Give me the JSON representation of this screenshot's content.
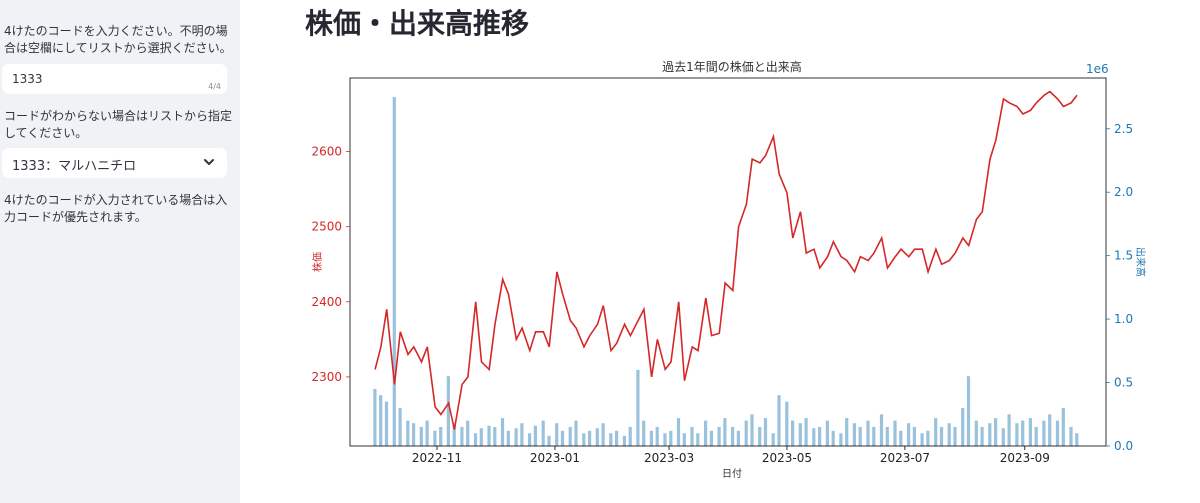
{
  "sidebar": {
    "code_help": "4けたのコードを入力ください。不明の場合は空欄にしてリストから選択ください。",
    "code_input_value": "1333",
    "code_input_counter": "4/4",
    "list_help": "コードがわからない場合はリストから指定してください。",
    "company_select_value": "1333：マルハニチロ",
    "priority_note": "4けたのコードが入力されている場合は入力コードが優先されます。"
  },
  "main": {
    "title": "株価・出来高推移"
  },
  "colors": {
    "price_line": "#d62728",
    "volume_bar": "#1f77b4",
    "sidebar_bg": "#f0f2f6"
  },
  "chart_data": {
    "type": "line",
    "title": "過去1年間の株価と出来高",
    "xlabel": "日付",
    "ylabel": "株価",
    "y2label": "出来高",
    "y2_offset_text": "1e6",
    "x_ticks": [
      "2022-11",
      "2023-01",
      "2023-03",
      "2023-05",
      "2023-07",
      "2023-09"
    ],
    "y_ticks": [
      2300,
      2400,
      2500,
      2600
    ],
    "y2_ticks": [
      "0.0",
      "0.5",
      "1.0",
      "1.5",
      "2.0",
      "2.5"
    ],
    "xlim": [
      "2022-09-17",
      "2023-10-13"
    ],
    "ylim": [
      2208,
      2698
    ],
    "y2lim": [
      0,
      2.9
    ],
    "legend": "none",
    "grid": false,
    "series": [
      {
        "type": "line",
        "dates": [
          "2022-09-30",
          "2022-10-03",
          "2022-10-06",
          "2022-10-10",
          "2022-10-13",
          "2022-10-17",
          "2022-10-20",
          "2022-10-24",
          "2022-10-27",
          "2022-10-31",
          "2022-11-03",
          "2022-11-07",
          "2022-11-10",
          "2022-11-14",
          "2022-11-17",
          "2022-11-21",
          "2022-11-24",
          "2022-11-28",
          "2022-12-01",
          "2022-12-05",
          "2022-12-08",
          "2022-12-12",
          "2022-12-15",
          "2022-12-19",
          "2022-12-22",
          "2022-12-26",
          "2022-12-29",
          "2023-01-02",
          "2023-01-05",
          "2023-01-09",
          "2023-01-12",
          "2023-01-16",
          "2023-01-19",
          "2023-01-23",
          "2023-01-26",
          "2023-01-30",
          "2023-02-02",
          "2023-02-06",
          "2023-02-09",
          "2023-02-13",
          "2023-02-16",
          "2023-02-20",
          "2023-02-23",
          "2023-02-27",
          "2023-03-02",
          "2023-03-06",
          "2023-03-09",
          "2023-03-13",
          "2023-03-16",
          "2023-03-20",
          "2023-03-23",
          "2023-03-27",
          "2023-03-30",
          "2023-04-03",
          "2023-04-06",
          "2023-04-10",
          "2023-04-13",
          "2023-04-17",
          "2023-04-20",
          "2023-04-24",
          "2023-04-27",
          "2023-05-01",
          "2023-05-04",
          "2023-05-08",
          "2023-05-11",
          "2023-05-15",
          "2023-05-18",
          "2023-05-22",
          "2023-05-25",
          "2023-05-29",
          "2023-06-01",
          "2023-06-05",
          "2023-06-08",
          "2023-06-12",
          "2023-06-15",
          "2023-06-19",
          "2023-06-22",
          "2023-06-26",
          "2023-06-29",
          "2023-07-03",
          "2023-07-06",
          "2023-07-10",
          "2023-07-13",
          "2023-07-17",
          "2023-07-20",
          "2023-07-24",
          "2023-07-27",
          "2023-07-31",
          "2023-08-03",
          "2023-08-07",
          "2023-08-10",
          "2023-08-14",
          "2023-08-17",
          "2023-08-21",
          "2023-08-24",
          "2023-08-28",
          "2023-08-31",
          "2023-09-04",
          "2023-09-07",
          "2023-09-11",
          "2023-09-14",
          "2023-09-18",
          "2023-09-21",
          "2023-09-25",
          "2023-09-28"
        ],
        "values": [
          2310,
          2340,
          2390,
          2290,
          2360,
          2330,
          2340,
          2320,
          2340,
          2260,
          2250,
          2265,
          2230,
          2290,
          2300,
          2400,
          2320,
          2310,
          2370,
          2430,
          2410,
          2350,
          2365,
          2335,
          2360,
          2360,
          2340,
          2440,
          2410,
          2375,
          2365,
          2340,
          2355,
          2370,
          2395,
          2335,
          2345,
          2370,
          2355,
          2375,
          2390,
          2300,
          2350,
          2310,
          2320,
          2400,
          2295,
          2340,
          2335,
          2405,
          2355,
          2358,
          2425,
          2415,
          2500,
          2530,
          2590,
          2585,
          2595,
          2620,
          2570,
          2545,
          2485,
          2520,
          2465,
          2470,
          2445,
          2460,
          2480,
          2460,
          2455,
          2440,
          2460,
          2455,
          2465,
          2485,
          2445,
          2460,
          2470,
          2460,
          2470,
          2470,
          2440,
          2470,
          2450,
          2455,
          2465,
          2485,
          2475,
          2510,
          2520,
          2590,
          2615,
          2670,
          2665,
          2660,
          2650,
          2655,
          2665,
          2675,
          2680,
          2670,
          2660,
          2665,
          2675
        ]
      },
      {
        "type": "bar",
        "dates": [
          "2022-09-30",
          "2022-10-03",
          "2022-10-06",
          "2022-10-10",
          "2022-10-13",
          "2022-10-17",
          "2022-10-20",
          "2022-10-24",
          "2022-10-27",
          "2022-10-31",
          "2022-11-03",
          "2022-11-07",
          "2022-11-10",
          "2022-11-14",
          "2022-11-17",
          "2022-11-21",
          "2022-11-24",
          "2022-11-28",
          "2022-12-01",
          "2022-12-05",
          "2022-12-08",
          "2022-12-12",
          "2022-12-15",
          "2022-12-19",
          "2022-12-22",
          "2022-12-26",
          "2022-12-29",
          "2023-01-02",
          "2023-01-05",
          "2023-01-09",
          "2023-01-12",
          "2023-01-16",
          "2023-01-19",
          "2023-01-23",
          "2023-01-26",
          "2023-01-30",
          "2023-02-02",
          "2023-02-06",
          "2023-02-09",
          "2023-02-13",
          "2023-02-16",
          "2023-02-20",
          "2023-02-23",
          "2023-02-27",
          "2023-03-02",
          "2023-03-06",
          "2023-03-09",
          "2023-03-13",
          "2023-03-16",
          "2023-03-20",
          "2023-03-23",
          "2023-03-27",
          "2023-03-30",
          "2023-04-03",
          "2023-04-06",
          "2023-04-10",
          "2023-04-13",
          "2023-04-17",
          "2023-04-20",
          "2023-04-24",
          "2023-04-27",
          "2023-05-01",
          "2023-05-04",
          "2023-05-08",
          "2023-05-11",
          "2023-05-15",
          "2023-05-18",
          "2023-05-22",
          "2023-05-25",
          "2023-05-29",
          "2023-06-01",
          "2023-06-05",
          "2023-06-08",
          "2023-06-12",
          "2023-06-15",
          "2023-06-19",
          "2023-06-22",
          "2023-06-26",
          "2023-06-29",
          "2023-07-03",
          "2023-07-06",
          "2023-07-10",
          "2023-07-13",
          "2023-07-17",
          "2023-07-20",
          "2023-07-24",
          "2023-07-27",
          "2023-07-31",
          "2023-08-03",
          "2023-08-07",
          "2023-08-10",
          "2023-08-14",
          "2023-08-17",
          "2023-08-21",
          "2023-08-24",
          "2023-08-28",
          "2023-08-31",
          "2023-09-04",
          "2023-09-07",
          "2023-09-11",
          "2023-09-14",
          "2023-09-18",
          "2023-09-21",
          "2023-09-25",
          "2023-09-28"
        ],
        "values": [
          0.45,
          0.4,
          0.35,
          2.75,
          0.3,
          0.2,
          0.18,
          0.15,
          0.2,
          0.12,
          0.15,
          0.55,
          0.18,
          0.15,
          0.2,
          0.1,
          0.14,
          0.16,
          0.15,
          0.22,
          0.12,
          0.14,
          0.18,
          0.1,
          0.16,
          0.2,
          0.08,
          0.18,
          0.12,
          0.15,
          0.2,
          0.1,
          0.12,
          0.14,
          0.18,
          0.1,
          0.12,
          0.08,
          0.15,
          0.6,
          0.2,
          0.12,
          0.15,
          0.1,
          0.12,
          0.22,
          0.1,
          0.15,
          0.1,
          0.2,
          0.12,
          0.15,
          0.22,
          0.15,
          0.12,
          0.2,
          0.25,
          0.15,
          0.22,
          0.1,
          0.4,
          0.35,
          0.2,
          0.18,
          0.22,
          0.14,
          0.15,
          0.2,
          0.12,
          0.1,
          0.22,
          0.18,
          0.15,
          0.2,
          0.15,
          0.25,
          0.15,
          0.2,
          0.12,
          0.18,
          0.15,
          0.1,
          0.12,
          0.22,
          0.15,
          0.18,
          0.15,
          0.3,
          0.55,
          0.2,
          0.15,
          0.18,
          0.22,
          0.14,
          0.25,
          0.18,
          0.2,
          0.22,
          0.15,
          0.2,
          0.25,
          0.2,
          0.3,
          0.15,
          0.1
        ]
      }
    ]
  }
}
